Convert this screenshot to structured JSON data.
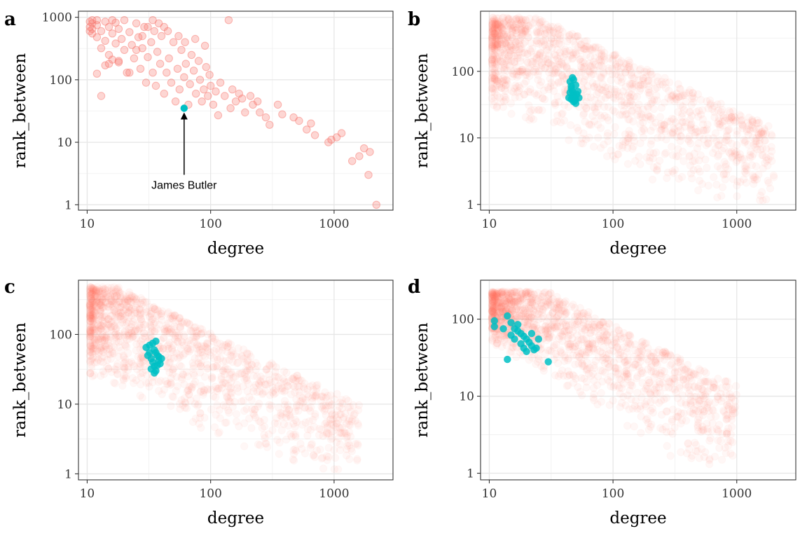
{
  "colors": {
    "background_points": "#F8766D",
    "highlight_points": "#00BFC4",
    "annotation": "#000000"
  },
  "chart_data": [
    {
      "panel": "a",
      "type": "scatter",
      "xlabel": "degree",
      "ylabel": "rank_between",
      "xscale": "log",
      "yscale": "log",
      "xlim": [
        8.5,
        3000
      ],
      "ylim": [
        0.82,
        1250
      ],
      "xticks": [
        10,
        100,
        1000
      ],
      "xtick_labels": [
        "10",
        "100",
        "1000"
      ],
      "yticks": [
        1,
        10,
        100,
        1000
      ],
      "ytick_labels": [
        "1",
        "10",
        "100",
        "1000"
      ],
      "grid": true,
      "series": [
        {
          "role": "background",
          "color": "#F8766D",
          "opacity": 0.3,
          "points": [
            [
              2200,
              1
            ],
            [
              1900,
              3
            ],
            [
              1950,
              7
            ],
            [
              1600,
              6
            ],
            [
              1750,
              8
            ],
            [
              1400,
              5
            ],
            [
              1150,
              14
            ],
            [
              1050,
              12
            ],
            [
              950,
              11
            ],
            [
              900,
              10
            ],
            [
              700,
              13
            ],
            [
              650,
              20
            ],
            [
              600,
              16
            ],
            [
              520,
              22
            ],
            [
              470,
              25
            ],
            [
              380,
              28
            ],
            [
              350,
              40
            ],
            [
              300,
              19
            ],
            [
              280,
              25
            ],
            [
              250,
              30
            ],
            [
              240,
              45
            ],
            [
              220,
              40
            ],
            [
              210,
              55
            ],
            [
              190,
              30
            ],
            [
              180,
              50
            ],
            [
              170,
              60
            ],
            [
              160,
              45
            ],
            [
              150,
              70
            ],
            [
              145,
              35
            ],
            [
              140,
              900
            ],
            [
              130,
              55
            ],
            [
              120,
              90
            ],
            [
              115,
              27
            ],
            [
              110,
              65
            ],
            [
              105,
              40
            ],
            [
              100,
              80
            ],
            [
              98,
              120
            ],
            [
              95,
              55
            ],
            [
              92,
              160
            ],
            [
              88,
              70
            ],
            [
              85,
              45
            ],
            [
              82,
              100
            ],
            [
              80,
              200
            ],
            [
              76,
              60
            ],
            [
              73,
              140
            ],
            [
              70,
              250
            ],
            [
              68,
              85
            ],
            [
              66,
              40
            ],
            [
              63,
              180
            ],
            [
              61,
              110
            ],
            [
              58,
              300
            ],
            [
              56,
              70
            ],
            [
              54,
              150
            ],
            [
              52,
              45
            ],
            [
              50,
              400
            ],
            [
              48,
              90
            ],
            [
              46,
              220
            ],
            [
              44,
              130
            ],
            [
              42,
              60
            ],
            [
              40,
              500
            ],
            [
              39,
              180
            ],
            [
              37,
              280
            ],
            [
              36,
              80
            ],
            [
              35,
              600
            ],
            [
              34,
              130
            ],
            [
              33,
              400
            ],
            [
              31,
              230
            ],
            [
              30,
              90
            ],
            [
              29,
              700
            ],
            [
              28,
              320
            ],
            [
              27,
              150
            ],
            [
              26,
              480
            ],
            [
              25,
              800
            ],
            [
              24,
              220
            ],
            [
              23,
              360
            ],
            [
              22,
              580
            ],
            [
              21,
              130
            ],
            [
              20,
              900
            ],
            [
              20,
              300
            ],
            [
              19,
              450
            ],
            [
              18,
              650
            ],
            [
              18,
              200
            ],
            [
              17,
              820
            ],
            [
              17,
              380
            ],
            [
              16,
              550
            ],
            [
              16,
              900
            ],
            [
              15,
              250
            ],
            [
              15,
              700
            ],
            [
              14,
              420
            ],
            [
              14,
              850
            ],
            [
              13,
              600
            ],
            [
              13,
              320
            ],
            [
              12,
              750
            ],
            [
              12,
              900
            ],
            [
              12,
              480
            ],
            [
              11,
              650
            ],
            [
              11,
              900
            ],
            [
              11,
              800
            ],
            [
              11,
              550
            ],
            [
              10.5,
              700
            ],
            [
              10.5,
              850
            ],
            [
              10.5,
              600
            ],
            [
              12,
              125
            ],
            [
              13,
              55
            ],
            [
              14,
              170
            ],
            [
              15,
              180
            ],
            [
              16,
              210
            ],
            [
              18,
              190
            ],
            [
              22,
              130
            ],
            [
              25,
              300
            ],
            [
              28,
              500
            ],
            [
              31,
              700
            ],
            [
              34,
              900
            ],
            [
              38,
              800
            ],
            [
              42,
              700
            ],
            [
              45,
              600
            ],
            [
              55,
              500
            ],
            [
              62,
              400
            ],
            [
              75,
              450
            ],
            [
              90,
              350
            ]
          ]
        },
        {
          "role": "highlight",
          "color": "#00BFC4",
          "opacity": 1,
          "points": [
            [
              61,
              35
            ]
          ]
        }
      ],
      "annotations": [
        {
          "text": "James Butler",
          "point": [
            61,
            35
          ],
          "label_at": [
            61,
            1.8
          ]
        }
      ]
    },
    {
      "panel": "b",
      "type": "scatter",
      "xlabel": "degree",
      "ylabel": "rank_between",
      "xscale": "log",
      "yscale": "log",
      "xlim": [
        8.5,
        3000
      ],
      "ylim": [
        0.82,
        800
      ],
      "xticks": [
        10,
        100,
        1000
      ],
      "xtick_labels": [
        "10",
        "100",
        "1000"
      ],
      "yticks": [
        1,
        10,
        100
      ],
      "ytick_labels": [
        "1",
        "10",
        "100"
      ],
      "grid": true,
      "series": [
        {
          "role": "background",
          "color": "#F8766D",
          "opacity": 0.3,
          "description": "dense cloud of overlapping semi-transparent points spanning degree 10 to 2000 and rank_between 1 to 700"
        },
        {
          "role": "highlight",
          "color": "#00BFC4",
          "opacity": 0.85,
          "points": [
            [
              45,
              70
            ],
            [
              46,
              60
            ],
            [
              47,
              50
            ],
            [
              48,
              45
            ],
            [
              49,
              40
            ],
            [
              50,
              38
            ],
            [
              48,
              35
            ],
            [
              47,
              42
            ],
            [
              46,
              55
            ],
            [
              45,
              48
            ],
            [
              44,
              40
            ],
            [
              50,
              33
            ],
            [
              49,
              36
            ],
            [
              51,
              45
            ],
            [
              52,
              50
            ],
            [
              50,
              62
            ],
            [
              48,
              75
            ],
            [
              47,
              80
            ],
            [
              53,
              40
            ],
            [
              46,
              38
            ]
          ]
        }
      ]
    },
    {
      "panel": "c",
      "type": "scatter",
      "xlabel": "degree",
      "ylabel": "rank_between",
      "xscale": "log",
      "yscale": "log",
      "xlim": [
        8.5,
        3000
      ],
      "ylim": [
        0.82,
        600
      ],
      "xticks": [
        10,
        100,
        1000
      ],
      "xtick_labels": [
        "10",
        "100",
        "1000"
      ],
      "yticks": [
        1,
        10,
        100
      ],
      "ytick_labels": [
        "1",
        "10",
        "100"
      ],
      "grid": true,
      "series": [
        {
          "role": "background",
          "color": "#F8766D",
          "opacity": 0.3,
          "description": "dense cloud of overlapping semi-transparent points spanning degree 10 to 1600 and rank_between 1 to 500"
        },
        {
          "role": "highlight",
          "color": "#00BFC4",
          "opacity": 0.85,
          "points": [
            [
              30,
              65
            ],
            [
              32,
              55
            ],
            [
              33,
              45
            ],
            [
              34,
              40
            ],
            [
              35,
              35
            ],
            [
              36,
              30
            ],
            [
              37,
              50
            ],
            [
              38,
              42
            ],
            [
              35,
              60
            ],
            [
              34,
              75
            ],
            [
              36,
              80
            ],
            [
              38,
              48
            ],
            [
              39,
              38
            ],
            [
              33,
              32
            ],
            [
              35,
              28
            ],
            [
              37,
              36
            ],
            [
              40,
              45
            ],
            [
              31,
              50
            ],
            [
              32,
              70
            ],
            [
              36,
              55
            ]
          ]
        }
      ]
    },
    {
      "panel": "d",
      "type": "scatter",
      "xlabel": "degree",
      "ylabel": "rank_between",
      "xscale": "log",
      "yscale": "log",
      "xlim": [
        8.5,
        3000
      ],
      "ylim": [
        0.82,
        320
      ],
      "xticks": [
        10,
        100,
        1000
      ],
      "xtick_labels": [
        "10",
        "100",
        "1000"
      ],
      "yticks": [
        1,
        10,
        100
      ],
      "ytick_labels": [
        "1",
        "10",
        "100"
      ],
      "grid": true,
      "series": [
        {
          "role": "background",
          "color": "#F8766D",
          "opacity": 0.3,
          "description": "dense cloud of overlapping semi-transparent points spanning degree 10 to 1000 and rank_between 1 to 230"
        },
        {
          "role": "highlight",
          "color": "#00BFC4",
          "opacity": 0.85,
          "points": [
            [
              11,
              95
            ],
            [
              11,
              80
            ],
            [
              14,
              110
            ],
            [
              15,
              90
            ],
            [
              16,
              75
            ],
            [
              17,
              70
            ],
            [
              18,
              65
            ],
            [
              19,
              60
            ],
            [
              20,
              55
            ],
            [
              21,
              50
            ],
            [
              22,
              45
            ],
            [
              23,
              40
            ],
            [
              20,
              38
            ],
            [
              19,
              42
            ],
            [
              18,
              48
            ],
            [
              16,
              55
            ],
            [
              15,
              62
            ],
            [
              14,
              30
            ],
            [
              30,
              28
            ],
            [
              24,
              42
            ],
            [
              17,
              85
            ],
            [
              22,
              65
            ],
            [
              13,
              75
            ],
            [
              25,
              55
            ]
          ]
        }
      ]
    }
  ]
}
